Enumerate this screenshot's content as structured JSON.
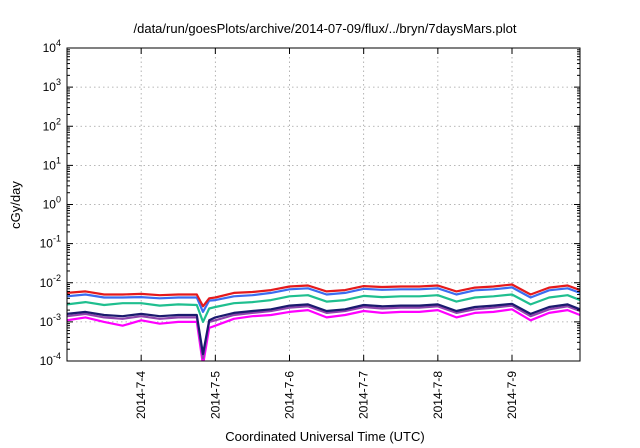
{
  "chart_data": {
    "type": "line",
    "title": "/data/run/goesPlots/archive/2014-07-09/flux/../bryn/7daysMars.plot",
    "xlabel": "Coordinated Universal Time (UTC)",
    "ylabel": "cGy/day",
    "yscale": "log",
    "ylim": [
      0.0001,
      10000
    ],
    "y_ticks": [
      {
        "value": 0.0001,
        "base": "10",
        "exp": "-4"
      },
      {
        "value": 0.001,
        "base": "10",
        "exp": "-3"
      },
      {
        "value": 0.01,
        "base": "10",
        "exp": "-2"
      },
      {
        "value": 0.1,
        "base": "10",
        "exp": "-1"
      },
      {
        "value": 1,
        "base": "10",
        "exp": "0"
      },
      {
        "value": 10,
        "base": "10",
        "exp": "1"
      },
      {
        "value": 100,
        "base": "10",
        "exp": "2"
      },
      {
        "value": 1000,
        "base": "10",
        "exp": "3"
      },
      {
        "value": 10000,
        "base": "10",
        "exp": "4"
      }
    ],
    "xlim": [
      "2014-07-03T00:00",
      "2014-07-09T22:00"
    ],
    "x_ticks": [
      {
        "value": "2014-07-04T00:00",
        "label": "2014-7-4"
      },
      {
        "value": "2014-07-05T00:00",
        "label": "2014-7-5"
      },
      {
        "value": "2014-07-06T00:00",
        "label": "2014-7-6"
      },
      {
        "value": "2014-07-07T00:00",
        "label": "2014-7-7"
      },
      {
        "value": "2014-07-08T00:00",
        "label": "2014-7-8"
      },
      {
        "value": "2014-07-09T00:00",
        "label": "2014-7-9"
      }
    ],
    "grid": true,
    "legend": "none",
    "x": [
      "2014-07-03T00:00",
      "2014-07-03T06:00",
      "2014-07-03T12:00",
      "2014-07-03T18:00",
      "2014-07-04T00:00",
      "2014-07-04T06:00",
      "2014-07-04T12:00",
      "2014-07-04T18:00",
      "2014-07-04T20:00",
      "2014-07-04T22:00",
      "2014-07-05T00:00",
      "2014-07-05T06:00",
      "2014-07-05T12:00",
      "2014-07-05T18:00",
      "2014-07-06T00:00",
      "2014-07-06T06:00",
      "2014-07-06T12:00",
      "2014-07-06T18:00",
      "2014-07-07T00:00",
      "2014-07-07T06:00",
      "2014-07-07T12:00",
      "2014-07-07T18:00",
      "2014-07-08T00:00",
      "2014-07-08T06:00",
      "2014-07-08T12:00",
      "2014-07-08T18:00",
      "2014-07-09T00:00",
      "2014-07-09T06:00",
      "2014-07-09T12:00",
      "2014-07-09T18:00",
      "2014-07-09T22:00"
    ],
    "series": [
      {
        "color": "#e41a1c",
        "values": [
          0.0055,
          0.006,
          0.005,
          0.005,
          0.0052,
          0.0048,
          0.005,
          0.005,
          0.0025,
          0.004,
          0.0042,
          0.0055,
          0.0058,
          0.0065,
          0.008,
          0.0085,
          0.006,
          0.0065,
          0.0082,
          0.0078,
          0.008,
          0.008,
          0.0085,
          0.006,
          0.0075,
          0.008,
          0.009,
          0.005,
          0.0075,
          0.0085,
          0.0065
        ]
      },
      {
        "color": "#3b6cf0",
        "values": [
          0.0045,
          0.005,
          0.0042,
          0.0042,
          0.0043,
          0.004,
          0.0042,
          0.0042,
          0.0018,
          0.0035,
          0.0036,
          0.0045,
          0.0048,
          0.0055,
          0.0068,
          0.0072,
          0.005,
          0.0055,
          0.007,
          0.0066,
          0.0068,
          0.0068,
          0.0072,
          0.005,
          0.0064,
          0.0068,
          0.0076,
          0.0042,
          0.0064,
          0.0072,
          0.0055
        ]
      },
      {
        "color": "#1fbf8f",
        "values": [
          0.0028,
          0.0032,
          0.0027,
          0.003,
          0.003,
          0.0026,
          0.0028,
          0.0027,
          0.001,
          0.0022,
          0.0024,
          0.003,
          0.0032,
          0.0036,
          0.0045,
          0.0048,
          0.0033,
          0.0036,
          0.0046,
          0.0043,
          0.0045,
          0.0045,
          0.0048,
          0.0033,
          0.0042,
          0.0045,
          0.005,
          0.0028,
          0.0042,
          0.0048,
          0.0036
        ]
      },
      {
        "color": "#1a1a6e",
        "values": [
          0.0016,
          0.0018,
          0.0015,
          0.0014,
          0.0016,
          0.0014,
          0.0015,
          0.0015,
          0.00015,
          0.0011,
          0.0013,
          0.0017,
          0.0019,
          0.0021,
          0.0026,
          0.0028,
          0.0019,
          0.0021,
          0.0027,
          0.0025,
          0.0026,
          0.0026,
          0.0028,
          0.0019,
          0.0024,
          0.0026,
          0.0029,
          0.0016,
          0.0024,
          0.0028,
          0.0021
        ]
      },
      {
        "color": "#8e44ad",
        "values": [
          0.0014,
          0.0016,
          0.0013,
          0.0012,
          0.0014,
          0.0012,
          0.0013,
          0.0013,
          0.00012,
          0.001,
          0.0011,
          0.0015,
          0.0017,
          0.0019,
          0.0023,
          0.0025,
          0.0017,
          0.0019,
          0.0024,
          0.0022,
          0.0023,
          0.0023,
          0.0025,
          0.0017,
          0.0021,
          0.0023,
          0.0026,
          0.0014,
          0.0021,
          0.0025,
          0.0019
        ]
      },
      {
        "color": "#ff00ff",
        "values": [
          0.0011,
          0.0013,
          0.001,
          0.0008,
          0.0011,
          0.0009,
          0.001,
          0.001,
          8e-05,
          0.0007,
          0.0008,
          0.0012,
          0.0014,
          0.0015,
          0.0018,
          0.002,
          0.0013,
          0.0015,
          0.0019,
          0.0017,
          0.0018,
          0.0018,
          0.002,
          0.0013,
          0.0017,
          0.0018,
          0.0021,
          0.0011,
          0.0017,
          0.002,
          0.0015
        ]
      }
    ]
  }
}
